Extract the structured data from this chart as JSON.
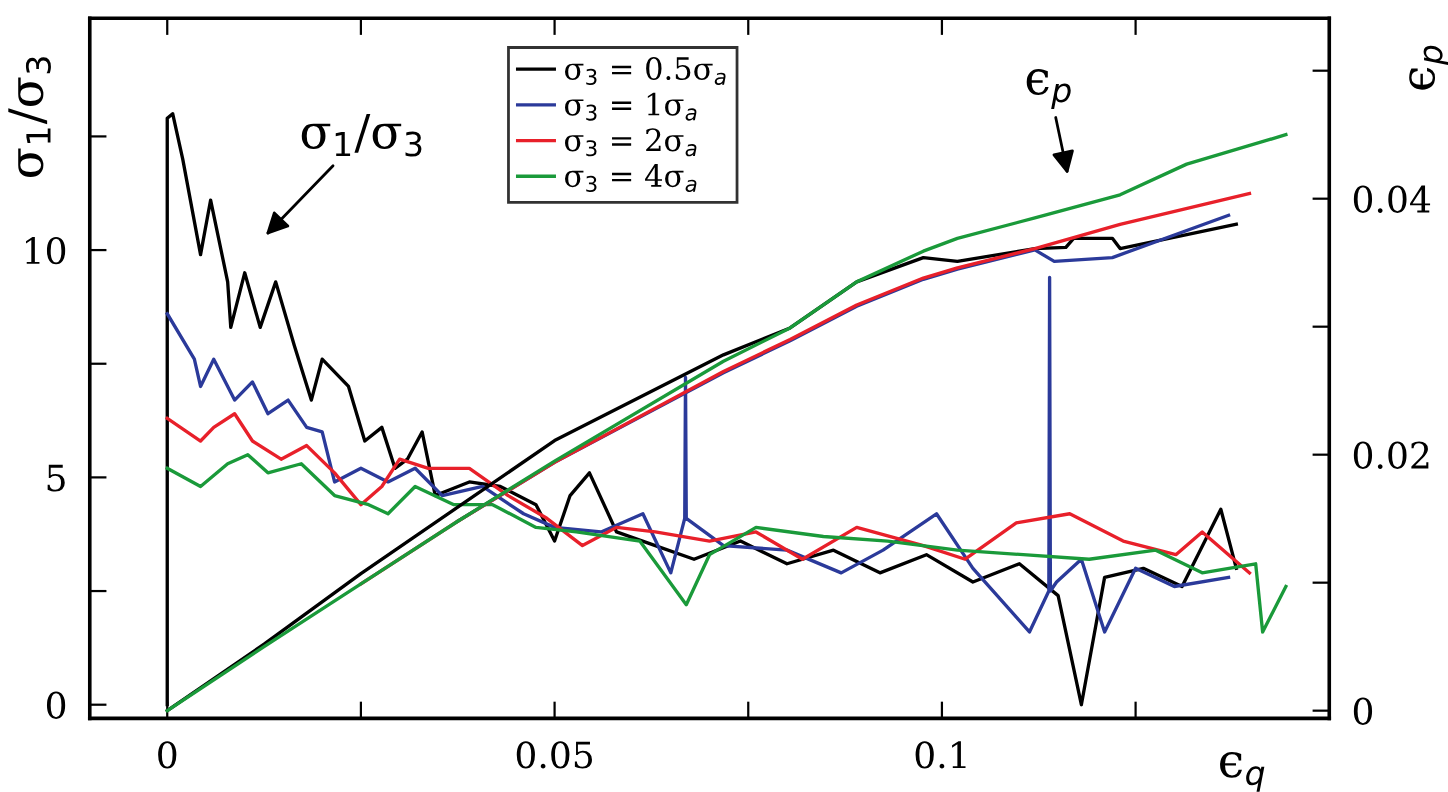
{
  "chart_data": {
    "type": "line",
    "ylabel": "σ$_{1}$/σ$_{3}$",
    "y2label": "ϵ$_{p}$",
    "xlabel": "ϵ$_{q}$",
    "xlim": [
      -0.01,
      0.15
    ],
    "xticks": [
      0,
      {
        "value": 0.025,
        "label": null
      },
      0.05,
      {
        "value": 0.075,
        "label": null
      },
      0.1,
      {
        "value": 0.125,
        "label": null
      }
    ],
    "ylim": [
      -0.3,
      15.1
    ],
    "yticks": [
      0,
      {
        "value": 2.5,
        "label": null
      },
      5,
      {
        "value": 7.5,
        "label": null
      },
      10,
      {
        "value": 12.5,
        "label": null
      }
    ],
    "y2lim": [
      -0.0006,
      0.0541
    ],
    "y2ticks": [
      0,
      {
        "value": 0.01,
        "label": null
      },
      0.02,
      {
        "value": 0.03,
        "label": null
      },
      0.04,
      {
        "value": 0.05,
        "label": null
      }
    ],
    "legend": "top",
    "annotations": [
      "σ$_{1}$/σ$_{3}$",
      "ϵ$_{p}$"
    ],
    "series": [
      {
        "name": "σ$_{3}$ = 0.5σ$_{a}$",
        "color": "#000000",
        "x": [
          0,
          0,
          0.0007,
          0.002,
          0.0043,
          0.0056,
          0.0078,
          0.0082,
          0.01,
          0.012,
          0.014,
          0.0164,
          0.0186,
          0.02,
          0.0234,
          0.0255,
          0.0277,
          0.0294,
          0.031,
          0.0329,
          0.0346,
          0.039,
          0.043,
          0.0476,
          0.05,
          0.052,
          0.0545,
          0.058,
          0.063,
          0.068,
          0.074,
          0.08,
          0.086,
          0.092,
          0.098,
          0.104,
          0.11,
          0.115,
          0.118,
          0.121,
          0.126,
          0.131,
          0.136,
          0.138
        ],
        "values": [
          0,
          12.9,
          13.0,
          12.0,
          9.9,
          11.1,
          9.3,
          8.3,
          9.5,
          8.3,
          9.3,
          7.9,
          6.7,
          7.6,
          7.0,
          5.8,
          6.1,
          5.2,
          5.4,
          6.0,
          4.6,
          4.9,
          4.8,
          4.4,
          3.6,
          4.6,
          5.1,
          3.8,
          3.5,
          3.2,
          3.6,
          3.1,
          3.4,
          2.9,
          3.3,
          2.7,
          3.1,
          2.4,
          0,
          2.8,
          3.0,
          2.6,
          4.3,
          3.0
        ]
      },
      {
        "name": "σ$_{3}$ = 1σ$_{a}$",
        "color": "#2b3a9a",
        "x": [
          0,
          0.0035,
          0.0043,
          0.006,
          0.0087,
          0.011,
          0.013,
          0.0156,
          0.018,
          0.02,
          0.0216,
          0.025,
          0.0285,
          0.032,
          0.0355,
          0.0407,
          0.046,
          0.05,
          0.056,
          0.0614,
          0.065,
          0.0668,
          0.0669,
          0.067,
          0.0718,
          0.08,
          0.087,
          0.0924,
          0.0993,
          0.104,
          0.1113,
          0.1138,
          0.1139,
          0.114,
          0.1148,
          0.118,
          0.121,
          0.125,
          0.13,
          0.137
        ],
        "values": [
          8.6,
          7.6,
          7.0,
          7.6,
          6.7,
          7.1,
          6.4,
          6.7,
          6.1,
          6.0,
          4.9,
          5.2,
          4.9,
          5.2,
          4.6,
          4.8,
          4.2,
          3.9,
          3.8,
          4.2,
          2.9,
          4.1,
          7.2,
          4.1,
          3.5,
          3.4,
          2.9,
          3.4,
          4.2,
          3.0,
          1.6,
          2.5,
          9.4,
          2.5,
          2.7,
          3.2,
          1.6,
          3.0,
          2.6,
          2.8
        ]
      },
      {
        "name": "σ$_{3}$ = 2σ$_{a}$",
        "color": "#e8202a",
        "x": [
          0,
          0.0043,
          0.006,
          0.0087,
          0.011,
          0.0147,
          0.018,
          0.0216,
          0.025,
          0.0277,
          0.03,
          0.0337,
          0.039,
          0.044,
          0.049,
          0.0536,
          0.058,
          0.063,
          0.07,
          0.076,
          0.082,
          0.089,
          0.0976,
          0.103,
          0.1096,
          0.1165,
          0.1234,
          0.1302,
          0.1336,
          0.1397
        ],
        "values": [
          6.3,
          5.8,
          6.1,
          6.4,
          5.8,
          5.4,
          5.7,
          5.1,
          4.4,
          4.8,
          5.4,
          5.2,
          5.2,
          4.6,
          4.1,
          3.5,
          3.9,
          3.8,
          3.6,
          3.8,
          3.2,
          3.9,
          3.5,
          3.2,
          4.0,
          4.2,
          3.6,
          3.3,
          3.8,
          2.9
        ]
      },
      {
        "name": "σ$_{3}$ = 4σ$_{a}$",
        "color": "#1a9a3a",
        "x": [
          0,
          0.0043,
          0.0078,
          0.0104,
          0.013,
          0.0173,
          0.0216,
          0.026,
          0.0285,
          0.032,
          0.037,
          0.042,
          0.0476,
          0.0528,
          0.061,
          0.067,
          0.07,
          0.076,
          0.0847,
          0.093,
          0.102,
          0.1105,
          0.119,
          0.1276,
          0.1336,
          0.1405,
          0.1414,
          0.1444
        ],
        "values": [
          5.2,
          4.8,
          5.3,
          5.5,
          5.1,
          5.3,
          4.6,
          4.4,
          4.2,
          4.8,
          4.4,
          4.4,
          3.9,
          3.8,
          3.6,
          2.2,
          3.3,
          3.9,
          3.7,
          3.6,
          3.4,
          3.3,
          3.2,
          3.4,
          2.9,
          3.1,
          1.6,
          2.6
        ]
      },
      {
        "axis": "y2",
        "color": "#000000",
        "x": [
          0,
          0.0125,
          0.025,
          0.0375,
          0.05,
          0.0718,
          0.0804,
          0.089,
          0.0976,
          0.102,
          0.112,
          0.116,
          0.117,
          0.122,
          0.123,
          0.138
        ],
        "values": [
          0,
          0.0052,
          0.0107,
          0.0159,
          0.0211,
          0.0278,
          0.0299,
          0.0335,
          0.0354,
          0.0351,
          0.0361,
          0.0362,
          0.0369,
          0.0369,
          0.0361,
          0.038
        ]
      },
      {
        "axis": "y2",
        "color": "#2b3a9a",
        "x": [
          0.0375,
          0.05,
          0.0718,
          0.0804,
          0.089,
          0.0976,
          0.102,
          0.112,
          0.1145,
          0.122,
          0.137
        ],
        "values": [
          0.0148,
          0.0194,
          0.0264,
          0.0289,
          0.0316,
          0.0337,
          0.0345,
          0.036,
          0.0351,
          0.0354,
          0.0387
        ]
      },
      {
        "axis": "y2",
        "color": "#e8202a",
        "x": [
          0.025,
          0.0375,
          0.05,
          0.0718,
          0.0804,
          0.089,
          0.0976,
          0.102,
          0.112,
          0.123,
          0.1397
        ],
        "values": [
          0.0099,
          0.0148,
          0.0194,
          0.0265,
          0.029,
          0.0317,
          0.0338,
          0.0346,
          0.0361,
          0.038,
          0.0404
        ]
      },
      {
        "axis": "y2",
        "color": "#1a9a3a",
        "x": [
          0,
          0.0125,
          0.025,
          0.0375,
          0.05,
          0.0718,
          0.0804,
          0.089,
          0.0976,
          0.102,
          0.112,
          0.123,
          0.1316,
          0.1444
        ],
        "values": [
          0,
          0.005,
          0.0099,
          0.0148,
          0.0195,
          0.0273,
          0.0299,
          0.0335,
          0.0359,
          0.0369,
          0.0385,
          0.0403,
          0.0427,
          0.045
        ]
      }
    ]
  }
}
